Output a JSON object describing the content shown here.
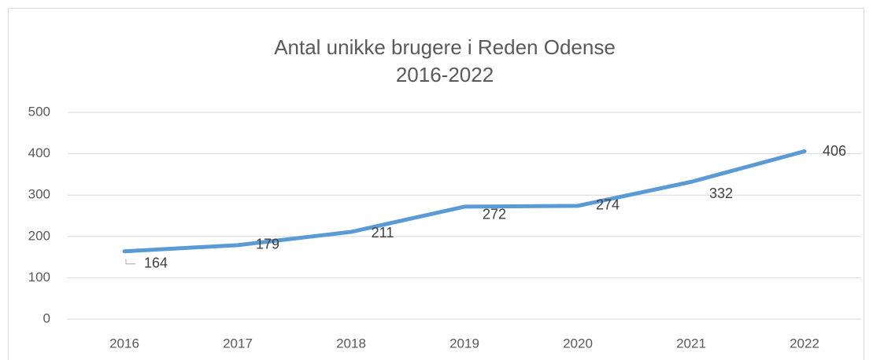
{
  "chart_data": {
    "type": "line",
    "title": "Antal unikke brugere i Reden Odense",
    "subtitle": "2016-2022",
    "categories": [
      "2016",
      "2017",
      "2018",
      "2019",
      "2020",
      "2021",
      "2022"
    ],
    "series": [
      {
        "name": "Antal unikke brugere",
        "color": "#5b9bd5",
        "values": [
          164,
          179,
          211,
          272,
          274,
          332,
          406
        ]
      }
    ],
    "ylim": [
      0,
      500
    ],
    "yticks": [
      0,
      100,
      200,
      300,
      400,
      500
    ],
    "grid": true
  }
}
